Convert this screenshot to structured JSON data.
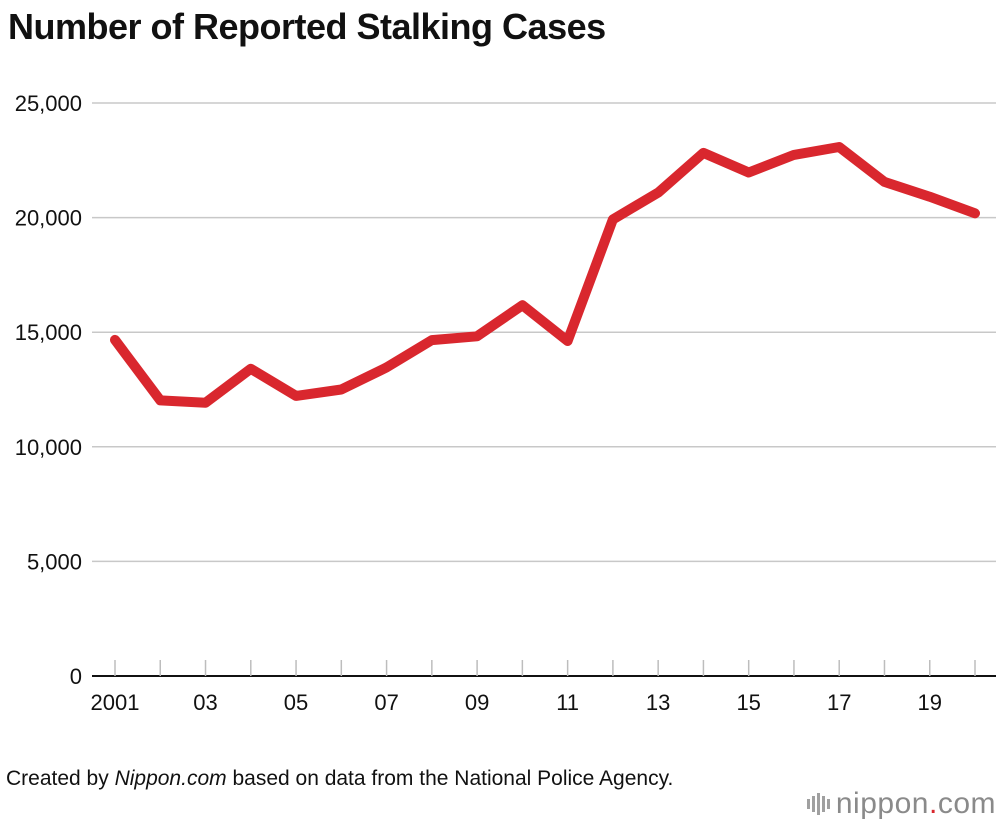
{
  "chart_data": {
    "type": "line",
    "title": "Number of Reported Stalking Cases",
    "xlabel": "",
    "ylabel": "",
    "ylim": [
      0,
      25000
    ],
    "yticks": [
      0,
      5000,
      10000,
      15000,
      20000,
      25000
    ],
    "ytick_labels": [
      "0",
      "5,000",
      "10,000",
      "15,000",
      "20,000",
      "25,000"
    ],
    "x": [
      2001,
      2002,
      2003,
      2004,
      2005,
      2006,
      2007,
      2008,
      2009,
      2010,
      2011,
      2012,
      2013,
      2014,
      2015,
      2016,
      2017,
      2018,
      2019,
      2020
    ],
    "xtick_labels": [
      "2001",
      "",
      "03",
      "",
      "05",
      "",
      "07",
      "",
      "09",
      "",
      "11",
      "",
      "13",
      "",
      "15",
      "",
      "17",
      "",
      "19",
      ""
    ],
    "grid": true,
    "series": [
      {
        "name": "Reported stalking cases",
        "color": "#d9272e",
        "values": [
          14662,
          12024,
          11923,
          13403,
          12220,
          12501,
          13463,
          14657,
          14823,
          16176,
          14618,
          19920,
          21089,
          22823,
          21968,
          22737,
          23079,
          21556,
          20912,
          20189
        ]
      }
    ]
  },
  "source": {
    "prefix": "Created by ",
    "site": "Nippon.com",
    "suffix": " based on data from the National Police Agency."
  },
  "logo": {
    "name": "nippon",
    "dot": ".",
    "tld": "com"
  }
}
